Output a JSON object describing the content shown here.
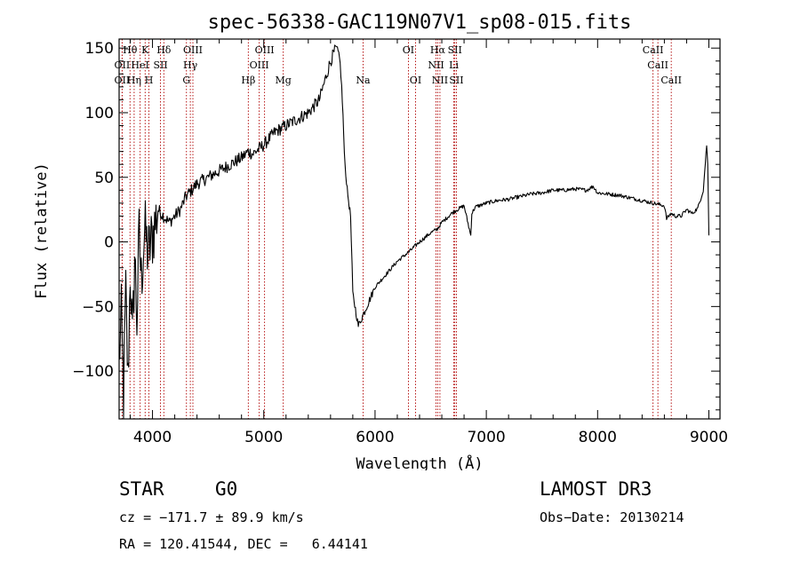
{
  "chart_data": {
    "type": "line",
    "title": "spec-56338-GAC119N07V1_sp08-015.fits",
    "xlabel": "Wavelength (Å)",
    "ylabel": "Flux (relative)",
    "xlim": [
      3700,
      9100
    ],
    "ylim": [
      -137,
      157
    ],
    "xticks": [
      4000,
      5000,
      6000,
      7000,
      8000,
      9000
    ],
    "yticks": [
      -100,
      -50,
      0,
      50,
      100,
      150
    ],
    "series": [
      {
        "name": "spectrum",
        "x": [
          3700,
          3720,
          3740,
          3760,
          3780,
          3800,
          3820,
          3840,
          3860,
          3880,
          3900,
          3930,
          3960,
          4000,
          4050,
          4100,
          4150,
          4200,
          4250,
          4300,
          4350,
          4400,
          4500,
          4600,
          4700,
          4800,
          4860,
          4900,
          5000,
          5100,
          5200,
          5300,
          5400,
          5500,
          5550,
          5600,
          5650,
          5680,
          5700,
          5730,
          5750,
          5780,
          5800,
          5830,
          5850,
          5900,
          5950,
          6000,
          6100,
          6200,
          6300,
          6400,
          6500,
          6560,
          6600,
          6700,
          6800,
          6860,
          6870,
          6900,
          7000,
          7100,
          7200,
          7300,
          7400,
          7500,
          7600,
          7700,
          7800,
          7900,
          7960,
          8000,
          8100,
          8200,
          8300,
          8400,
          8500,
          8550,
          8600,
          8620,
          8660,
          8700,
          8750,
          8800,
          8850,
          8900,
          8950,
          8980,
          8990,
          9000
        ],
        "y": [
          -90,
          -60,
          -120,
          -40,
          -110,
          -20,
          -80,
          -10,
          -60,
          5,
          -30,
          10,
          -10,
          5,
          25,
          20,
          15,
          20,
          25,
          35,
          40,
          45,
          50,
          55,
          60,
          65,
          70,
          68,
          75,
          85,
          90,
          95,
          100,
          110,
          125,
          140,
          150,
          145,
          120,
          60,
          40,
          20,
          -40,
          -55,
          -65,
          -55,
          -45,
          -35,
          -25,
          -15,
          -8,
          0,
          7,
          10,
          15,
          23,
          28,
          5,
          22,
          27,
          30,
          32,
          33,
          35,
          37,
          38,
          40,
          40,
          41,
          40,
          43,
          38,
          37,
          36,
          34,
          32,
          30,
          29,
          28,
          18,
          22,
          20,
          20,
          25,
          22,
          26,
          40,
          75,
          60,
          5
        ]
      }
    ],
    "spectral_lines": [
      {
        "label": "Hθ",
        "wave": 3798,
        "row": 1
      },
      {
        "label": "K",
        "wave": 3934,
        "row": 1
      },
      {
        "label": "Hδ",
        "wave": 4102,
        "row": 1
      },
      {
        "label": "OIII",
        "wave": 4363,
        "row": 1
      },
      {
        "label": "OIII",
        "wave": 5007,
        "row": 1
      },
      {
        "label": "OI",
        "wave": 6300,
        "row": 1
      },
      {
        "label": "Hα",
        "wave": 6563,
        "row": 1
      },
      {
        "label": "SII",
        "wave": 6717,
        "row": 1
      },
      {
        "label": "CaII",
        "wave": 8498,
        "row": 1
      },
      {
        "label": "OII",
        "wave": 3727,
        "row": 2
      },
      {
        "label": "HeI",
        "wave": 3889,
        "row": 2
      },
      {
        "label": "SII",
        "wave": 4072,
        "row": 2
      },
      {
        "label": "Hγ",
        "wave": 4340,
        "row": 2
      },
      {
        "label": "OIII",
        "wave": 4959,
        "row": 2
      },
      {
        "label": "NII",
        "wave": 6548,
        "row": 2
      },
      {
        "label": "Li",
        "wave": 6708,
        "row": 2
      },
      {
        "label": "CaII",
        "wave": 8542,
        "row": 2
      },
      {
        "label": "OII",
        "wave": 3727,
        "row": 3
      },
      {
        "label": "Hη",
        "wave": 3835,
        "row": 3
      },
      {
        "label": "H",
        "wave": 3968,
        "row": 3
      },
      {
        "label": "G",
        "wave": 4305,
        "row": 3
      },
      {
        "label": "Hβ",
        "wave": 4861,
        "row": 3
      },
      {
        "label": "Mg",
        "wave": 5175,
        "row": 3
      },
      {
        "label": "Na",
        "wave": 5893,
        "row": 3
      },
      {
        "label": "OI",
        "wave": 6364,
        "row": 3
      },
      {
        "label": "NII",
        "wave": 6583,
        "row": 3
      },
      {
        "label": "SII",
        "wave": 6731,
        "row": 3
      },
      {
        "label": "CaII",
        "wave": 8662,
        "row": 3
      }
    ],
    "line_color": "#b00000"
  },
  "info": {
    "class": "STAR",
    "subclass": "G0",
    "survey": "LAMOST DR3",
    "cz": "cz = −171.7 ± 89.9 km/s",
    "obs_date": "Obs−Date: 20130214",
    "radec": "RA = 120.41544, DEC =   6.44141"
  }
}
